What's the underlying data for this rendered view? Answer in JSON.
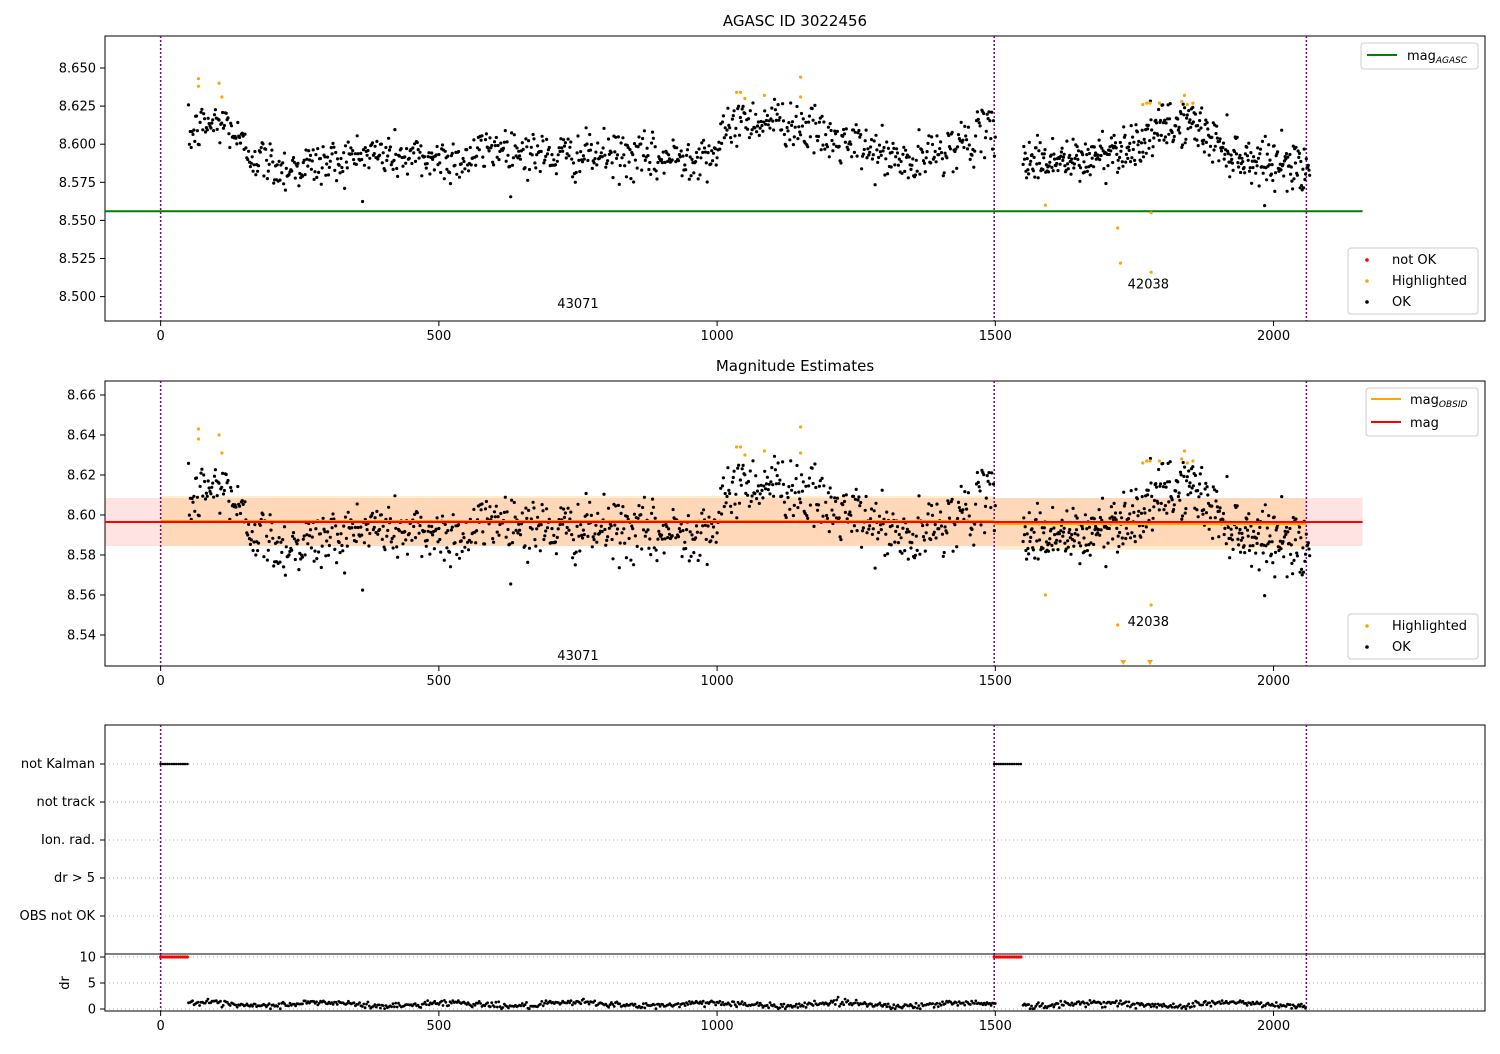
{
  "chart_data": [
    {
      "type": "scatter",
      "title": "AGASC ID 3022456",
      "xlim": [
        -100,
        2380
      ],
      "ylim": [
        8.484,
        8.671
      ],
      "xticks": [
        "0",
        "500",
        "1000",
        "1500",
        "2000"
      ],
      "yticks": [
        "8.500",
        "8.525",
        "8.550",
        "8.575",
        "8.600",
        "8.625",
        "8.650"
      ],
      "agasc_mag": 8.556,
      "vlines": [
        0,
        1498,
        2059
      ],
      "obsid_labels": [
        {
          "text": "43071",
          "x": 750,
          "y": 8.495
        },
        {
          "text": "42038",
          "x": 1775,
          "y": 8.508
        }
      ],
      "legend_lines": [
        {
          "main": "mag",
          "sub": "AGASC",
          "color": "#008000"
        }
      ],
      "legend_markers": [
        {
          "label": "not OK",
          "color": "#ff0000"
        },
        {
          "label": "Highlighted",
          "color": "#ffa500"
        },
        {
          "label": "OK",
          "color": "#000000"
        }
      ],
      "highlighted": [
        [
          68,
          8.643
        ],
        [
          68,
          8.638
        ],
        [
          105,
          8.64
        ],
        [
          110,
          8.631
        ],
        [
          1035,
          8.634
        ],
        [
          1042,
          8.634
        ],
        [
          1050,
          8.63
        ],
        [
          1085,
          8.632
        ],
        [
          1150,
          8.644
        ],
        [
          1150,
          8.631
        ],
        [
          1590,
          8.56
        ],
        [
          1720,
          8.545
        ],
        [
          1725,
          8.522
        ],
        [
          1765,
          8.626
        ],
        [
          1772,
          8.627
        ],
        [
          1778,
          8.627
        ],
        [
          1780,
          8.516
        ],
        [
          1780,
          8.555
        ],
        [
          1795,
          8.627
        ],
        [
          1835,
          8.628
        ],
        [
          1840,
          8.632
        ],
        [
          1845,
          8.626
        ],
        [
          1855,
          8.627
        ]
      ],
      "ok_segments": [
        {
          "x": [
            50,
            1500
          ],
          "knots": [
            [
              50,
              8.605
            ],
            [
              80,
              8.613
            ],
            [
              120,
              8.614
            ],
            [
              150,
              8.597
            ],
            [
              180,
              8.59
            ],
            [
              220,
              8.584
            ],
            [
              300,
              8.588
            ],
            [
              380,
              8.594
            ],
            [
              450,
              8.591
            ],
            [
              550,
              8.59
            ],
            [
              600,
              8.599
            ],
            [
              700,
              8.592
            ],
            [
              800,
              8.593
            ],
            [
              900,
              8.59
            ],
            [
              1000,
              8.595
            ],
            [
              1030,
              8.616
            ],
            [
              1100,
              8.616
            ],
            [
              1150,
              8.613
            ],
            [
              1200,
              8.603
            ],
            [
              1260,
              8.598
            ],
            [
              1300,
              8.593
            ],
            [
              1350,
              8.586
            ],
            [
              1400,
              8.596
            ],
            [
              1450,
              8.602
            ],
            [
              1500,
              8.61
            ]
          ],
          "n": 900,
          "sd": 0.0075
        },
        {
          "x": [
            1550,
            2065
          ],
          "knots": [
            [
              1550,
              8.59
            ],
            [
              1600,
              8.59
            ],
            [
              1650,
              8.588
            ],
            [
              1700,
              8.595
            ],
            [
              1750,
              8.6
            ],
            [
              1800,
              8.61
            ],
            [
              1850,
              8.615
            ],
            [
              1900,
              8.6
            ],
            [
              1950,
              8.59
            ],
            [
              2000,
              8.588
            ],
            [
              2065,
              8.585
            ]
          ],
          "n": 420,
          "sd": 0.0075
        }
      ]
    },
    {
      "type": "scatter",
      "title": "Magnitude Estimates",
      "xlim": [
        -100,
        2380
      ],
      "ylim": [
        8.5245,
        8.667
      ],
      "xticks": [
        "0",
        "500",
        "1000",
        "1500",
        "2000"
      ],
      "yticks": [
        "8.54",
        "8.56",
        "8.58",
        "8.60",
        "8.62",
        "8.64",
        "8.66"
      ],
      "mag": 8.5965,
      "mag_band": [
        8.5845,
        8.6085
      ],
      "obsid_mags": [
        {
          "x": [
            0,
            1498
          ],
          "value": 8.597,
          "band": [
            8.5845,
            8.6095
          ]
        },
        {
          "x": [
            1498,
            2059
          ],
          "value": 8.5955,
          "band": [
            8.5825,
            8.6085
          ]
        }
      ],
      "vlines": [
        0,
        1498,
        2059
      ],
      "obsid_labels": [
        {
          "text": "43071",
          "x": 750,
          "y": 8.5295
        },
        {
          "text": "42038",
          "x": 1775,
          "y": 8.5465
        }
      ],
      "legend_lines": [
        {
          "main": "mag",
          "sub": "OBSID",
          "color": "#ffa500"
        },
        {
          "main": "mag",
          "sub": "",
          "color": "#ff0000"
        }
      ],
      "legend_markers": [
        {
          "label": "Highlighted",
          "color": "#ffa500"
        },
        {
          "label": "OK",
          "color": "#000000"
        }
      ],
      "clipped_x": [
        1730,
        1778
      ]
    },
    {
      "type": "scatter",
      "xlim": [
        -100,
        2380
      ],
      "flag_labels": [
        "not Kalman",
        "not track",
        "Ion. rad.",
        "dr > 5",
        "OBS not OK"
      ],
      "flag_not_kalman_ranges": [
        [
          0,
          50
        ],
        [
          1498,
          1548
        ]
      ],
      "dr_ylabel": "dr",
      "dr_yticks": [
        "0",
        "5",
        "10"
      ],
      "xticks": [
        "0",
        "500",
        "1000",
        "1500",
        "2000"
      ],
      "dr_clipped_value": 10,
      "dr_ranges": [
        [
          50,
          1500
        ],
        [
          1550,
          2059
        ]
      ],
      "dr_mean": 0.9
    }
  ]
}
